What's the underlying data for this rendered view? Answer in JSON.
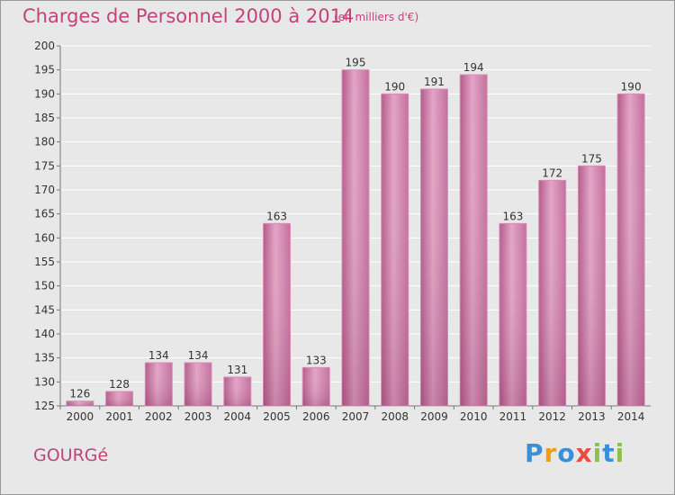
{
  "header": {
    "title": "Charges de Personnel 2000 à 2014",
    "subtitle": "(en milliers d'€)"
  },
  "footer": {
    "commune": "GOURGé",
    "logo_text": "Proxiti",
    "logo_letters": [
      {
        "char": "P",
        "color": "#3a8fd6"
      },
      {
        "char": "r",
        "color": "#f39c12"
      },
      {
        "char": "o",
        "color": "#3a8fd6"
      },
      {
        "char": "x",
        "color": "#e74c3c"
      },
      {
        "char": "i",
        "color": "#8bc34a"
      },
      {
        "char": "t",
        "color": "#3a8fd6"
      },
      {
        "char": "i",
        "color": "#8bc34a"
      }
    ]
  },
  "chart_data": {
    "type": "bar",
    "title": "Charges de Personnel 2000 à 2014",
    "subtitle": "(en milliers d'€)",
    "categories": [
      "2000",
      "2001",
      "2002",
      "2003",
      "2004",
      "2005",
      "2006",
      "2007",
      "2008",
      "2009",
      "2010",
      "2011",
      "2012",
      "2013",
      "2014"
    ],
    "values": [
      126,
      128,
      134,
      134,
      131,
      163,
      133,
      195,
      190,
      191,
      194,
      163,
      172,
      175,
      190
    ],
    "ylim": [
      125,
      200
    ],
    "yticks": [
      125,
      130,
      135,
      140,
      145,
      150,
      155,
      160,
      165,
      170,
      175,
      180,
      185,
      190,
      195,
      200
    ],
    "grid": true,
    "bar_color": "#c9679b",
    "bar_highlight": "#e8aacb"
  }
}
